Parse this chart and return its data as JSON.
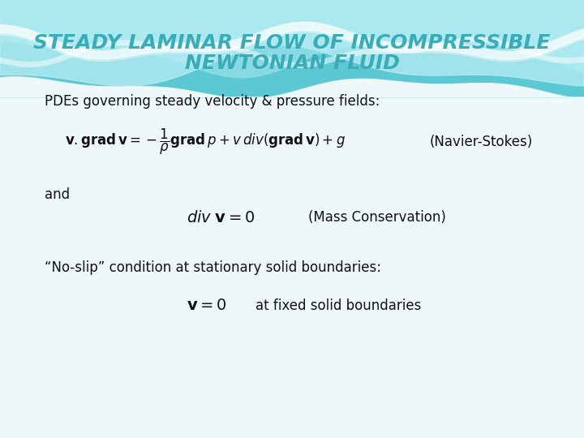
{
  "title_line1": "STEADY LAMINAR FLOW OF INCOMPRESSIBLE",
  "title_line2": "NEWTONIAN FLUID",
  "title_color": "#3aacb8",
  "subtitle": "PDEs governing steady velocity & pressure fields:",
  "eq1_label": "(Navier-Stokes)",
  "eq2_label": "(Mass Conservation)",
  "eq3_label": "at fixed solid boundaries",
  "text_and": "and",
  "text_noslip": "“No-slip” condition at stationary solid boundaries:",
  "body_text_color": "#111111",
  "bg_color": "#eef8fa",
  "wave_deep": "#5bc8d4",
  "wave_mid": "#8ddde6",
  "wave_light": "#b8edf4",
  "figsize": [
    7.2,
    5.4
  ],
  "dpi": 100
}
